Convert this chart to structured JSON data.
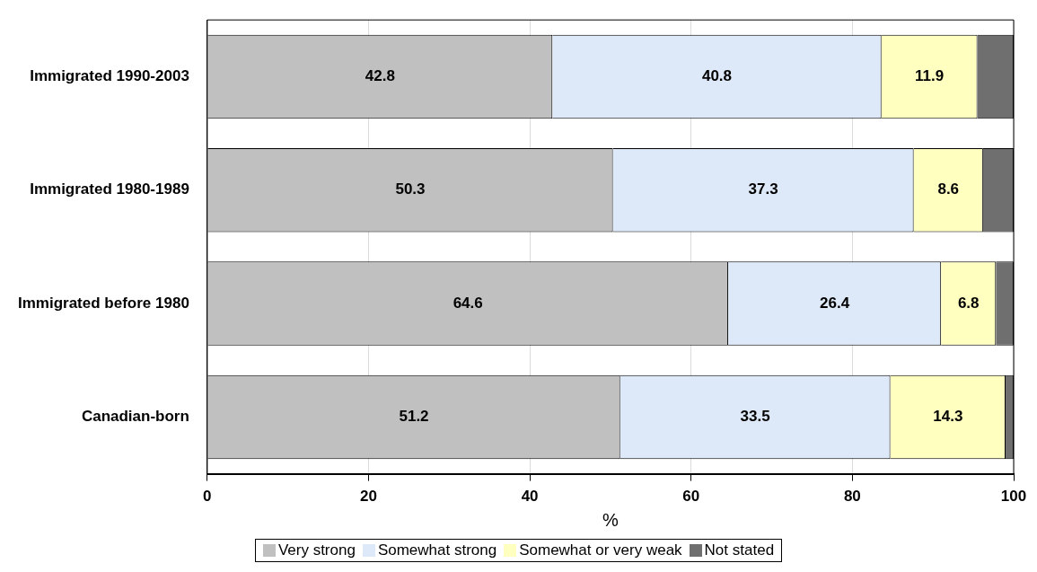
{
  "chart_data": {
    "type": "bar",
    "orientation": "horizontal",
    "stacked": true,
    "xlabel": "%",
    "categories": [
      "Immigrated 1990-2003",
      "Immigrated 1980-1989",
      "Immigrated before 1980",
      "Canadian-born"
    ],
    "series": [
      {
        "name": "Very strong",
        "color": "#c0c0c0",
        "values": [
          42.8,
          50.3,
          64.6,
          51.2
        ],
        "value_labels": [
          "42.8",
          "50.3",
          "64.6",
          "51.2"
        ]
      },
      {
        "name": "Somewhat strong",
        "color": "#dde9f8",
        "values": [
          40.8,
          37.3,
          26.4,
          33.5
        ],
        "value_labels": [
          "40.8",
          "37.3",
          "26.4",
          "33.5"
        ]
      },
      {
        "name": "Somewhat or very weak",
        "color": "#ffffc0",
        "values": [
          11.9,
          8.6,
          6.8,
          14.3
        ],
        "value_labels": [
          "11.9",
          "8.6",
          "6.8",
          "14.3"
        ]
      },
      {
        "name": "Not stated",
        "color": "#6f6f6f",
        "values": [
          4.5,
          3.8,
          2.2,
          1.0
        ],
        "value_labels": [
          null,
          null,
          null,
          null
        ]
      }
    ],
    "xlim": [
      0,
      100
    ],
    "xticks": [
      0,
      20,
      40,
      60,
      80,
      100
    ],
    "grid": "x",
    "legend": "bottom"
  }
}
